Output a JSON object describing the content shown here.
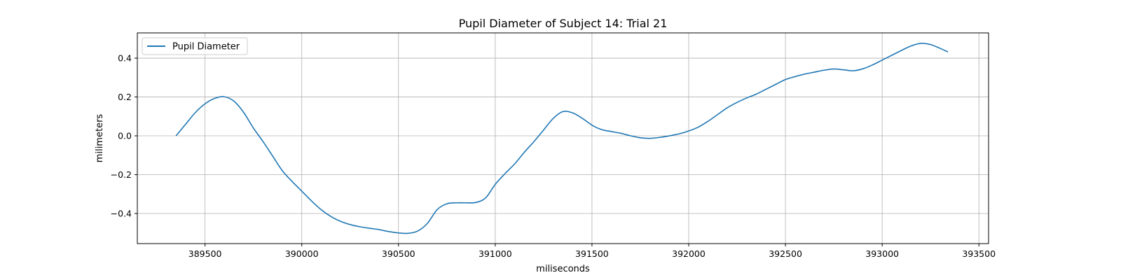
{
  "chart_data": {
    "type": "line",
    "title": "Pupil Diameter of Subject 14: Trial 21",
    "xlabel": "miliseconds",
    "ylabel": "milimeters",
    "xlim": [
      389150,
      393550
    ],
    "ylim": [
      -0.555,
      0.53
    ],
    "xticks": [
      389500,
      390000,
      390500,
      391000,
      391500,
      392000,
      392500,
      393000,
      393500
    ],
    "xtick_labels": [
      "389500",
      "390000",
      "390500",
      "391000",
      "391500",
      "392000",
      "392500",
      "393000",
      "393500"
    ],
    "yticks": [
      -0.4,
      -0.2,
      0.0,
      0.2,
      0.4
    ],
    "ytick_labels": [
      "−0.4",
      "−0.2",
      "0.0",
      "0.2",
      "0.4"
    ],
    "grid": true,
    "legend_position": "top-left",
    "series": [
      {
        "name": "Pupil Diameter",
        "color": "#1f77b4",
        "x": [
          389350,
          389400,
          389450,
          389500,
          389550,
          389600,
          389650,
          389700,
          389750,
          389800,
          389850,
          389900,
          389950,
          390000,
          390050,
          390100,
          390150,
          390200,
          390250,
          390300,
          390350,
          390400,
          390450,
          390500,
          390550,
          390600,
          390650,
          390700,
          390750,
          390800,
          390850,
          390900,
          390950,
          391000,
          391050,
          391100,
          391150,
          391200,
          391250,
          391300,
          391350,
          391400,
          391450,
          391500,
          391550,
          391600,
          391650,
          391700,
          391750,
          391800,
          391850,
          391900,
          391950,
          392000,
          392050,
          392100,
          392150,
          392200,
          392250,
          392300,
          392350,
          392400,
          392450,
          392500,
          392550,
          392600,
          392650,
          392700,
          392750,
          392800,
          392850,
          392900,
          392950,
          393000,
          393050,
          393100,
          393150,
          393200,
          393250,
          393300,
          393340
        ],
        "y": [
          0.0,
          0.06,
          0.12,
          0.165,
          0.193,
          0.201,
          0.178,
          0.12,
          0.04,
          -0.03,
          -0.105,
          -0.18,
          -0.235,
          -0.285,
          -0.335,
          -0.38,
          -0.415,
          -0.44,
          -0.457,
          -0.468,
          -0.476,
          -0.483,
          -0.493,
          -0.5,
          -0.502,
          -0.49,
          -0.45,
          -0.38,
          -0.35,
          -0.345,
          -0.345,
          -0.343,
          -0.32,
          -0.25,
          -0.195,
          -0.145,
          -0.085,
          -0.03,
          0.03,
          0.09,
          0.125,
          0.118,
          0.09,
          0.055,
          0.032,
          0.022,
          0.013,
          0.0,
          -0.01,
          -0.013,
          -0.008,
          0.0,
          0.01,
          0.025,
          0.045,
          0.075,
          0.11,
          0.145,
          0.172,
          0.195,
          0.215,
          0.24,
          0.265,
          0.29,
          0.305,
          0.318,
          0.328,
          0.338,
          0.344,
          0.34,
          0.335,
          0.345,
          0.365,
          0.39,
          0.415,
          0.44,
          0.463,
          0.476,
          0.47,
          0.45,
          0.432
        ]
      }
    ]
  }
}
